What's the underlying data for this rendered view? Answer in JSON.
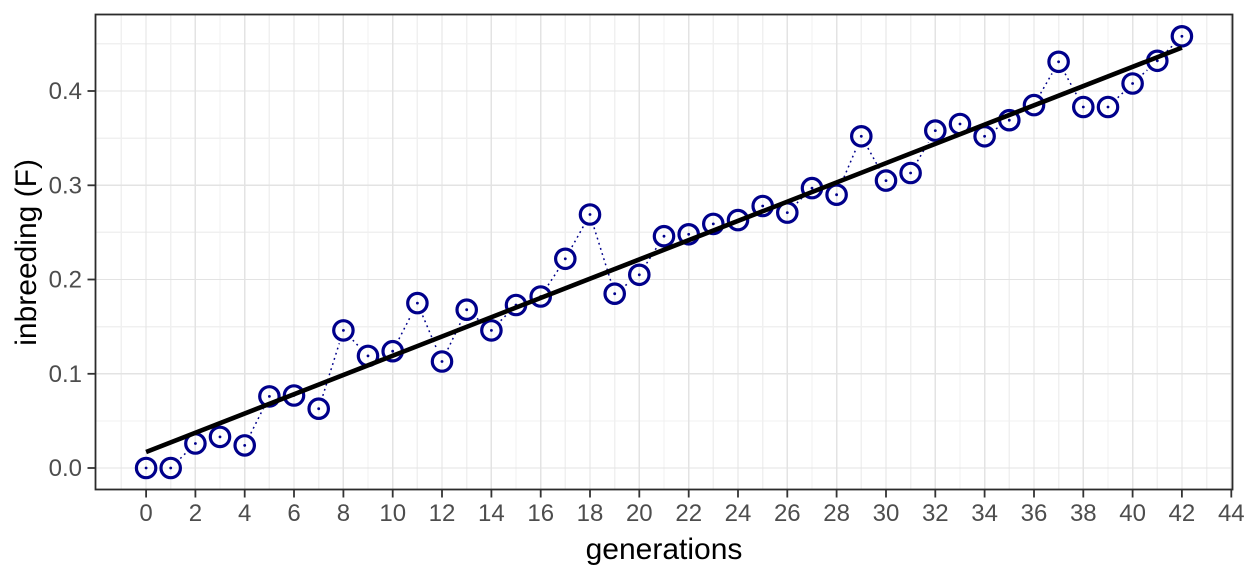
{
  "chart_data": {
    "type": "scatter",
    "title": "",
    "xlabel": "generations",
    "ylabel": "inbreeding (F)",
    "x": [
      0,
      1,
      2,
      3,
      4,
      5,
      6,
      7,
      8,
      9,
      10,
      11,
      12,
      13,
      14,
      15,
      16,
      17,
      18,
      19,
      20,
      21,
      22,
      23,
      24,
      25,
      26,
      27,
      28,
      29,
      30,
      31,
      32,
      33,
      34,
      35,
      36,
      37,
      38,
      39,
      40,
      41,
      42
    ],
    "y": [
      0.0,
      0.0,
      0.026,
      0.033,
      0.024,
      0.076,
      0.077,
      0.063,
      0.146,
      0.119,
      0.124,
      0.175,
      0.113,
      0.168,
      0.146,
      0.173,
      0.182,
      0.222,
      0.269,
      0.185,
      0.205,
      0.246,
      0.248,
      0.259,
      0.263,
      0.278,
      0.271,
      0.297,
      0.29,
      0.352,
      0.305,
      0.313,
      0.358,
      0.365,
      0.352,
      0.369,
      0.385,
      0.431,
      0.383,
      0.383,
      0.408,
      0.432,
      0.458
    ],
    "point_style": "open-circle-with-center-dot",
    "connector_style": "dotted",
    "trend_line": {
      "x_start": 0,
      "y_start": 0.017,
      "x_end": 42,
      "y_end": 0.446
    },
    "x_ticks": {
      "values": [
        0,
        2,
        4,
        6,
        8,
        10,
        12,
        14,
        16,
        18,
        20,
        22,
        24,
        26,
        28,
        30,
        32,
        34,
        36,
        38,
        40,
        42,
        44
      ],
      "labels": [
        "0",
        "2",
        "4",
        "6",
        "8",
        "10",
        "12",
        "14",
        "16",
        "18",
        "20",
        "22",
        "24",
        "26",
        "28",
        "30",
        "32",
        "34",
        "36",
        "38",
        "40",
        "42",
        "44"
      ]
    },
    "y_ticks": {
      "values": [
        0.0,
        0.1,
        0.2,
        0.3,
        0.4
      ],
      "labels": [
        "0.0",
        "0.1",
        "0.2",
        "0.3",
        "0.4"
      ]
    },
    "xlim": [
      -2.07,
      44.07
    ],
    "ylim": [
      -0.0233,
      0.4817
    ],
    "grid": "major+minor",
    "legend": "none",
    "colors": {
      "points": "#00008B",
      "dotted_line": "#00008B",
      "trend_line": "#000000",
      "grid_major": "#E3E3E3",
      "grid_minor": "#F0F0F0",
      "panel_border": "#2B2B2B",
      "tick_marks": "#333333",
      "tick_labels": "#4D4D4D",
      "axis_titles": "#000000",
      "background": "#FFFFFF"
    }
  }
}
